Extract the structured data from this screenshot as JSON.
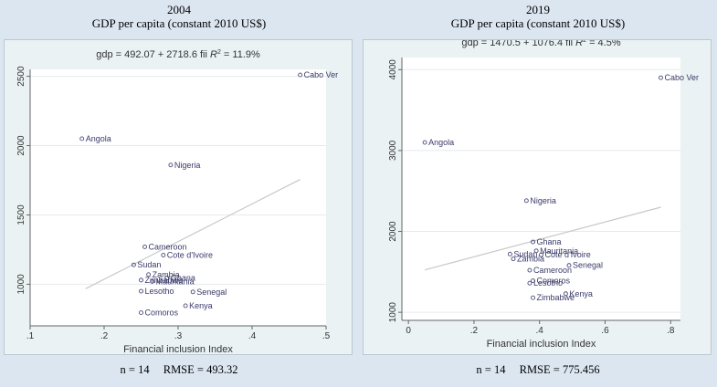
{
  "chart_data": [
    {
      "type": "scatter",
      "title": "2004",
      "subtitle": "GDP per capita (constant 2010 US$)",
      "equation": "gdp = 492.07 + 2718.6 fii",
      "r2_label": "R",
      "r2_value": " = 11.9%",
      "xlabel": "Financial inclusion Index",
      "ylabel": "",
      "xlim": [
        0.1,
        0.5
      ],
      "ylim": [
        700,
        2550
      ],
      "xticks": [
        0.1,
        0.2,
        0.3,
        0.4,
        0.5
      ],
      "xtick_labels": [
        ".1",
        ".2",
        ".3",
        ".4",
        ".5"
      ],
      "yticks": [
        1000,
        1500,
        2000,
        2500
      ],
      "ytick_labels": [
        "1000",
        "1500",
        "2000",
        "2500"
      ],
      "grid": true,
      "fit_line": {
        "intercept": 492.07,
        "slope": 2718.6,
        "x_range": [
          0.175,
          0.465
        ]
      },
      "points": [
        {
          "label": "Cabo Ver",
          "x": 0.465,
          "y": 2510
        },
        {
          "label": "Angola",
          "x": 0.17,
          "y": 2050
        },
        {
          "label": "Nigeria",
          "x": 0.29,
          "y": 1860
        },
        {
          "label": "Cameroon",
          "x": 0.255,
          "y": 1270
        },
        {
          "label": "Cote d'Ivoire",
          "x": 0.28,
          "y": 1210
        },
        {
          "label": "Sudan",
          "x": 0.24,
          "y": 1140
        },
        {
          "label": "Zambia",
          "x": 0.26,
          "y": 1070
        },
        {
          "label": "Ghana",
          "x": 0.285,
          "y": 1045
        },
        {
          "label": "Zimbabwe",
          "x": 0.25,
          "y": 1030
        },
        {
          "label": "Mauritania",
          "x": 0.265,
          "y": 1020
        },
        {
          "label": "Lesotho",
          "x": 0.25,
          "y": 950
        },
        {
          "label": "Senegal",
          "x": 0.32,
          "y": 945
        },
        {
          "label": "Kenya",
          "x": 0.31,
          "y": 845
        },
        {
          "label": "Comoros",
          "x": 0.25,
          "y": 795
        }
      ],
      "n_label": "n = 14",
      "rmse_label": "RMSE = 493.32"
    },
    {
      "type": "scatter",
      "title": "2019",
      "subtitle": "GDP per capita (constant 2010 US$)",
      "equation": "gdp = 1470.5 + 1076.4 fii",
      "r2_label": "R",
      "r2_value": " = 4.5%",
      "xlabel": "Financial inclusion Index",
      "ylabel": "",
      "xlim": [
        -0.02,
        0.83
      ],
      "ylim": [
        900,
        4150
      ],
      "xticks": [
        0,
        0.2,
        0.4,
        0.6,
        0.8
      ],
      "xtick_labels": [
        "0",
        ".2",
        ".4",
        ".6",
        ".8"
      ],
      "yticks": [
        1000,
        2000,
        3000,
        4000
      ],
      "ytick_labels": [
        "1000",
        "2000",
        "3000",
        "4000"
      ],
      "grid": true,
      "fit_line": {
        "intercept": 1470.5,
        "slope": 1076.4,
        "x_range": [
          0.05,
          0.77
        ]
      },
      "points": [
        {
          "label": "Cabo Ver",
          "x": 0.77,
          "y": 3900
        },
        {
          "label": "Angola",
          "x": 0.05,
          "y": 3100
        },
        {
          "label": "Nigeria",
          "x": 0.36,
          "y": 2380
        },
        {
          "label": "Ghana",
          "x": 0.38,
          "y": 1870
        },
        {
          "label": "Mauritania",
          "x": 0.39,
          "y": 1760
        },
        {
          "label": "Sudan",
          "x": 0.31,
          "y": 1720
        },
        {
          "label": "Cote d'Ivoire",
          "x": 0.405,
          "y": 1710
        },
        {
          "label": "Zambia",
          "x": 0.32,
          "y": 1660
        },
        {
          "label": "Senegal",
          "x": 0.49,
          "y": 1580
        },
        {
          "label": "Cameroon",
          "x": 0.37,
          "y": 1520
        },
        {
          "label": "Comoros",
          "x": 0.38,
          "y": 1390
        },
        {
          "label": "Lesotho",
          "x": 0.37,
          "y": 1360
        },
        {
          "label": "Kenya",
          "x": 0.48,
          "y": 1230
        },
        {
          "label": "Zimbabwe",
          "x": 0.38,
          "y": 1180
        }
      ],
      "n_label": "n = 14",
      "rmse_label": "RMSE = 775.456"
    }
  ]
}
